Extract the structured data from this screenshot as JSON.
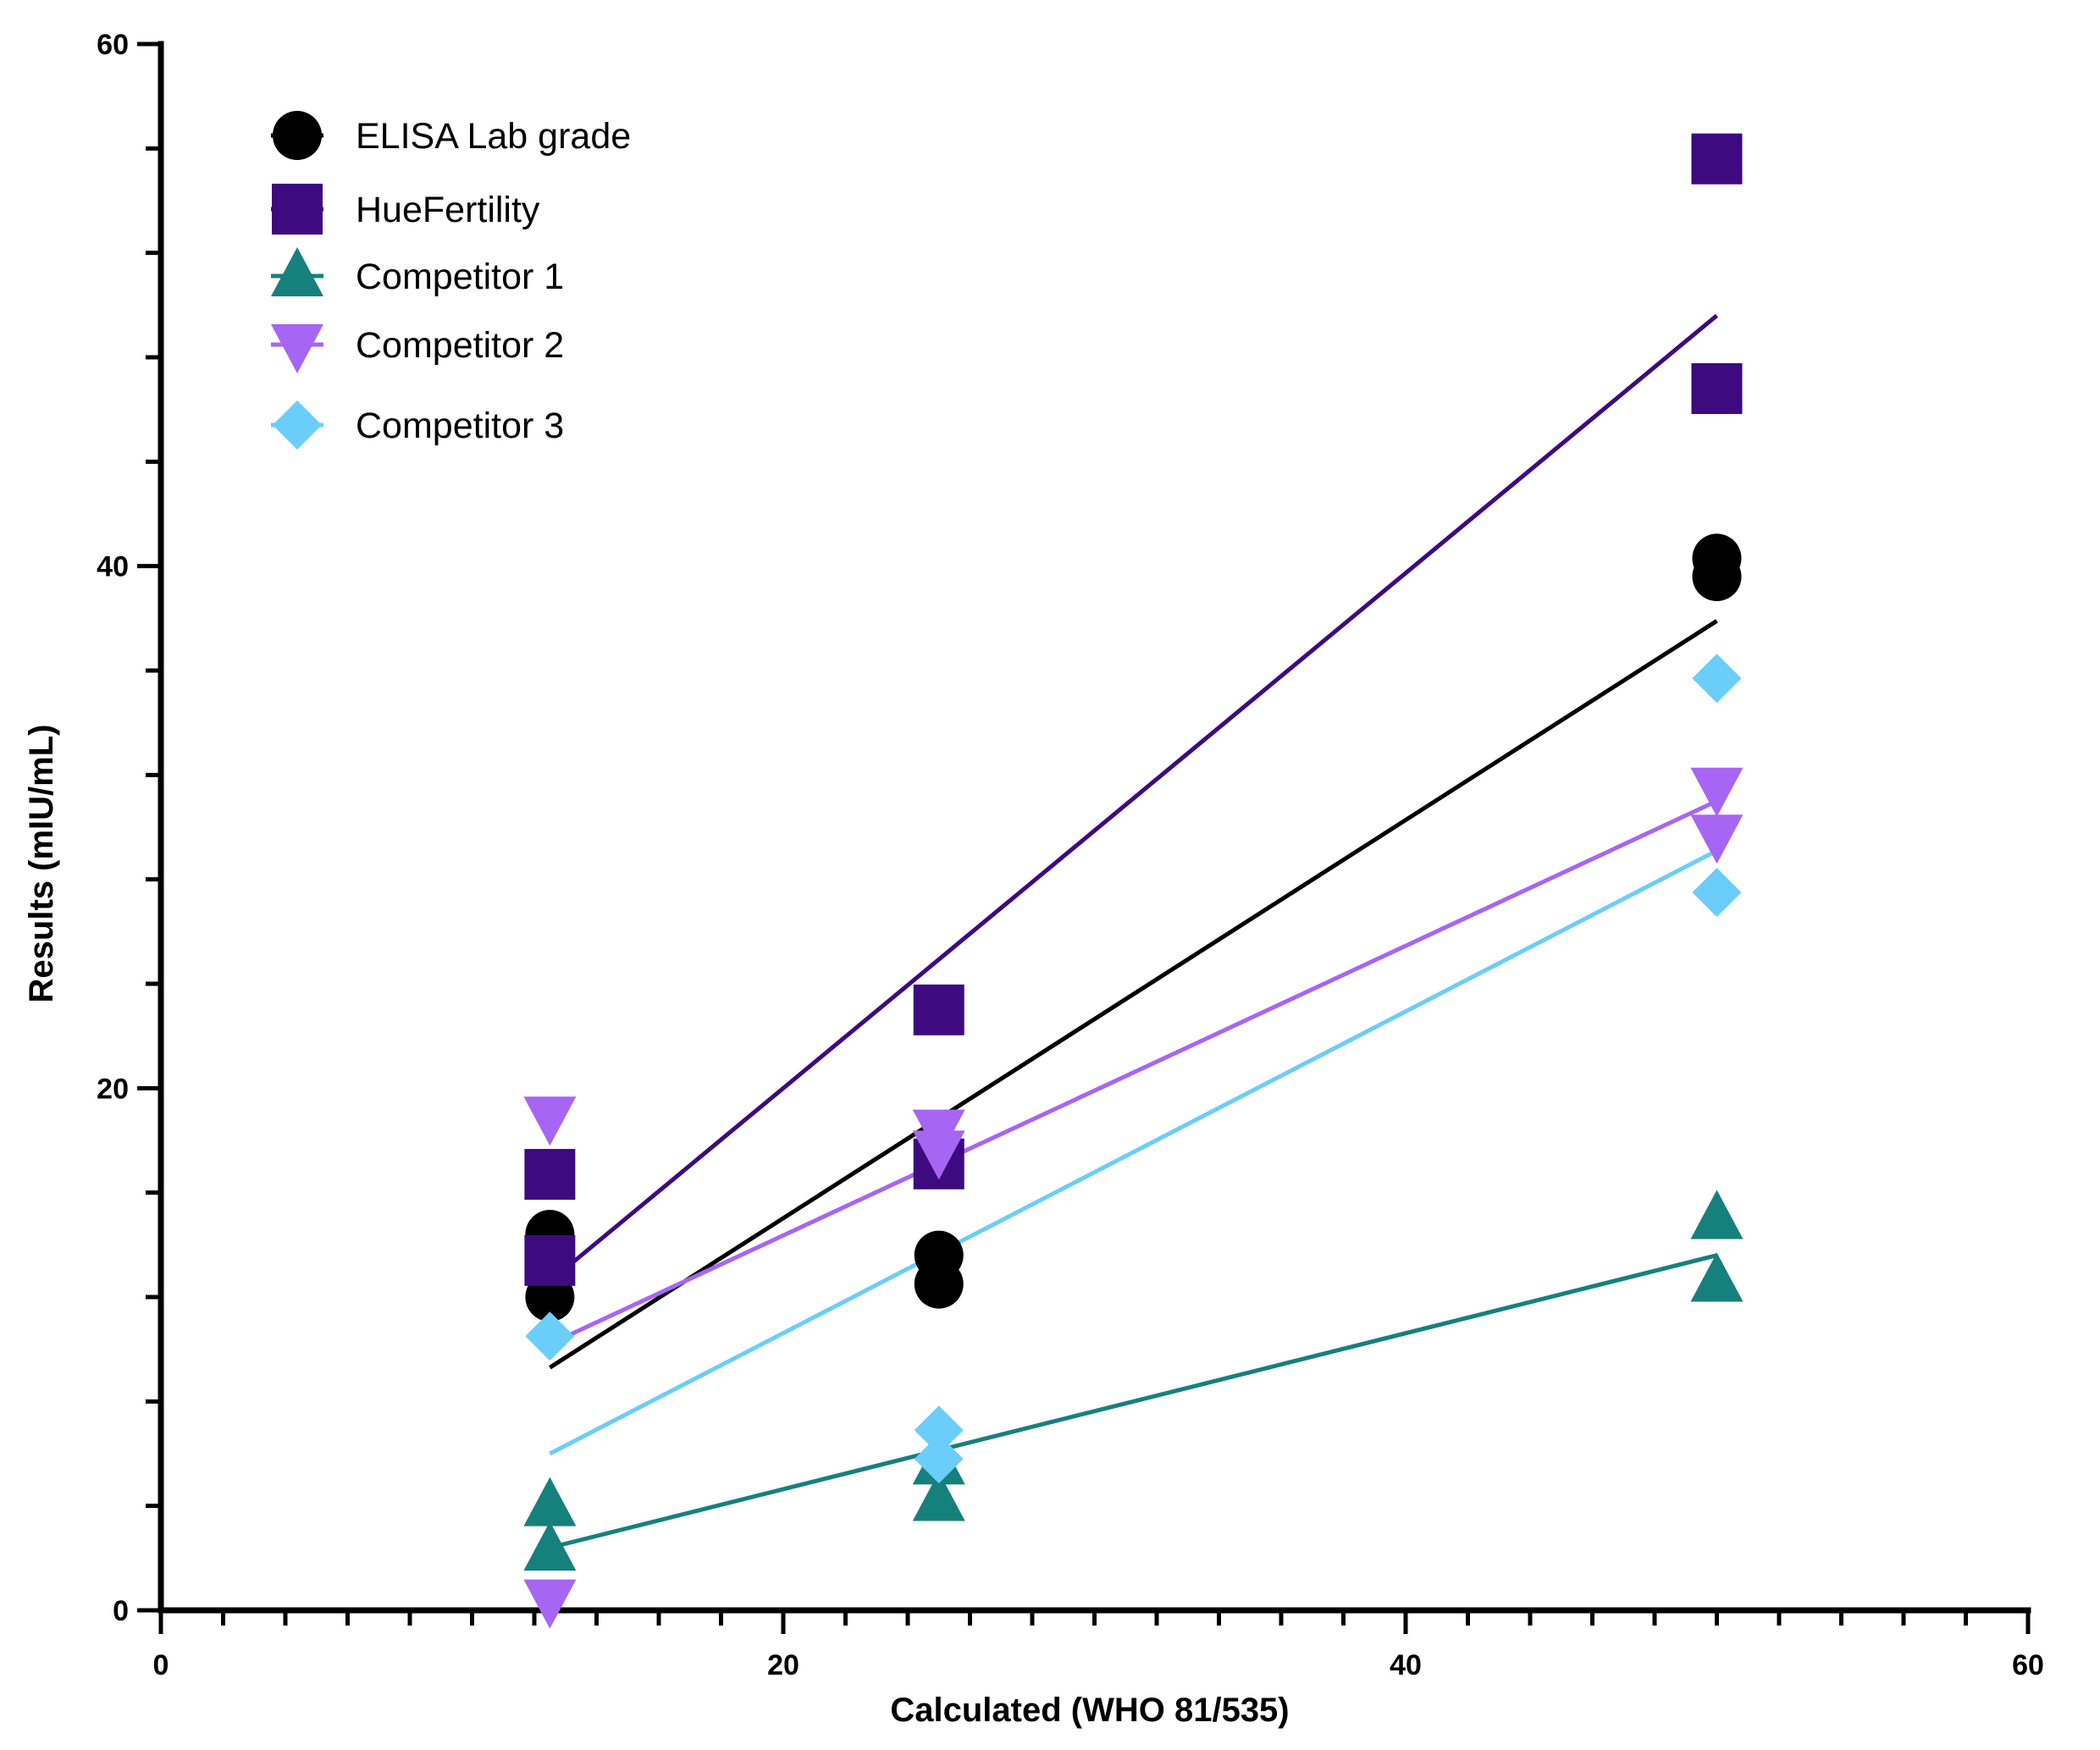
{
  "chart_data": {
    "type": "scatter",
    "title": "",
    "xlabel": "Calculated (WHO 81/535)",
    "ylabel": "Results (mIU/mL)",
    "xlim": [
      0,
      60
    ],
    "ylim": [
      0,
      60
    ],
    "x_ticks": [
      0,
      20,
      40,
      60
    ],
    "y_ticks": [
      0,
      20,
      40,
      60
    ],
    "x_minor_step": 2,
    "y_minor_step": 4,
    "grid": false,
    "legend_position": "top-left",
    "series": [
      {
        "name": "ELISA Lab grade",
        "marker": "circle",
        "color": "#000000",
        "points": [
          [
            12.5,
            14.4
          ],
          [
            12.5,
            12.0
          ],
          [
            25,
            13.6
          ],
          [
            25,
            12.5
          ],
          [
            50,
            40.3
          ],
          [
            50,
            39.6
          ]
        ],
        "fit": [
          [
            12.5,
            9.3
          ],
          [
            50,
            37.9
          ]
        ]
      },
      {
        "name": "HueFertility",
        "marker": "square",
        "color": "#3d0a80",
        "points": [
          [
            12.5,
            16.7
          ],
          [
            12.5,
            13.4
          ],
          [
            25,
            23.0
          ],
          [
            25,
            17.1
          ],
          [
            50,
            55.6
          ],
          [
            50,
            46.8
          ]
        ],
        "fit": [
          [
            12.5,
            12.6
          ],
          [
            50,
            49.6
          ]
        ]
      },
      {
        "name": "Competitor 1",
        "marker": "triangle-up",
        "color": "#16807d",
        "points": [
          [
            12.5,
            4.0
          ],
          [
            12.5,
            2.3
          ],
          [
            25,
            5.6
          ],
          [
            25,
            4.2
          ],
          [
            50,
            15.0
          ],
          [
            50,
            12.6
          ]
        ],
        "fit": [
          [
            12.5,
            2.4
          ],
          [
            50,
            13.6
          ]
        ]
      },
      {
        "name": "Competitor 2",
        "marker": "triangle-down",
        "color": "#a765f4",
        "points": [
          [
            12.5,
            18.9
          ],
          [
            12.5,
            0.4
          ],
          [
            25,
            18.4
          ],
          [
            25,
            17.6
          ],
          [
            50,
            31.5
          ],
          [
            50,
            29.7
          ]
        ],
        "fit": [
          [
            12.5,
            10.2
          ],
          [
            50,
            31.0
          ]
        ]
      },
      {
        "name": "Competitor 3",
        "marker": "diamond",
        "color": "#6bcdfa",
        "points": [
          [
            12.5,
            10.5
          ],
          [
            25,
            6.9
          ],
          [
            25,
            5.8
          ],
          [
            50,
            35.7
          ],
          [
            50,
            27.5
          ]
        ],
        "fit": [
          [
            12.5,
            6.0
          ],
          [
            50,
            29.1
          ]
        ]
      }
    ]
  }
}
